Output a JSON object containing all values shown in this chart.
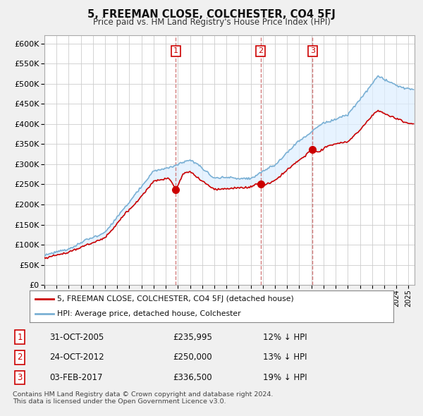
{
  "title": "5, FREEMAN CLOSE, COLCHESTER, CO4 5FJ",
  "subtitle": "Price paid vs. HM Land Registry's House Price Index (HPI)",
  "legend_line1": "5, FREEMAN CLOSE, COLCHESTER, CO4 5FJ (detached house)",
  "legend_line2": "HPI: Average price, detached house, Colchester",
  "footer1": "Contains HM Land Registry data © Crown copyright and database right 2024.",
  "footer2": "This data is licensed under the Open Government Licence v3.0.",
  "sales": [
    {
      "num": 1,
      "date": "31-OCT-2005",
      "price": "£235,995",
      "pct": "12% ↓ HPI",
      "year": 2005.83
    },
    {
      "num": 2,
      "date": "24-OCT-2012",
      "price": "£250,000",
      "pct": "13% ↓ HPI",
      "year": 2012.81
    },
    {
      "num": 3,
      "date": "03-FEB-2017",
      "price": "£336,500",
      "pct": "19% ↓ HPI",
      "year": 2017.09
    }
  ],
  "sale_values_red": [
    235995,
    250000,
    336500
  ],
  "ylim": [
    0,
    620000
  ],
  "yticks": [
    0,
    50000,
    100000,
    150000,
    200000,
    250000,
    300000,
    350000,
    400000,
    450000,
    500000,
    550000,
    600000
  ],
  "xlim_start": 1995,
  "xlim_end": 2025.5,
  "background_color": "#f0f0f0",
  "plot_bg": "#ffffff",
  "plot_shade": "#ddeeff",
  "red_color": "#cc0000",
  "blue_color": "#7ab0d4",
  "vline_color": "#cc6666"
}
